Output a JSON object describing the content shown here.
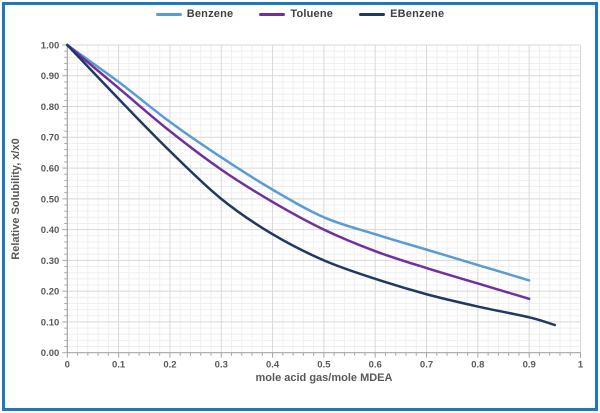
{
  "frame_color": "#1e78be",
  "chart_data": {
    "type": "line",
    "title": "",
    "xlabel": "mole acid gas/mole MDEA",
    "ylabel": "Relative Solubility, x/x0",
    "xlim": [
      0,
      1
    ],
    "ylim": [
      0,
      1
    ],
    "grid": "major-and-minor",
    "minor_step": 0.02,
    "major_step": 0.1,
    "legend_position": "top-center",
    "x_tick_labels": [
      "0",
      "0.1",
      "0.2",
      "0.3",
      "0.4",
      "0.5",
      "0.6",
      "0.7",
      "0.8",
      "0.9",
      "1"
    ],
    "y_tick_labels": [
      "0.00",
      "0.10",
      "0.20",
      "0.30",
      "0.40",
      "0.50",
      "0.60",
      "0.70",
      "0.80",
      "0.90",
      "1.00"
    ],
    "axis_color": "#a6a6a6",
    "major_grid_color": "#d8d8d8",
    "minor_grid_color": "#efefef",
    "tick_label_color": "#595959",
    "series": [
      {
        "name": "Benzene",
        "color": "#5b9bd5",
        "x": [
          0,
          0.1,
          0.2,
          0.3,
          0.4,
          0.5,
          0.6,
          0.7,
          0.8,
          0.9
        ],
        "y": [
          1.0,
          0.88,
          0.75,
          0.635,
          0.53,
          0.44,
          0.385,
          0.335,
          0.285,
          0.235
        ]
      },
      {
        "name": "Toluene",
        "color": "#7030a0",
        "x": [
          0,
          0.1,
          0.2,
          0.3,
          0.4,
          0.5,
          0.6,
          0.7,
          0.8,
          0.9
        ],
        "y": [
          1.0,
          0.86,
          0.72,
          0.595,
          0.49,
          0.4,
          0.33,
          0.275,
          0.225,
          0.175
        ]
      },
      {
        "name": "EBenzene",
        "color": "#203864",
        "x": [
          0,
          0.1,
          0.2,
          0.3,
          0.4,
          0.5,
          0.6,
          0.7,
          0.8,
          0.9,
          0.95
        ],
        "y": [
          1.0,
          0.825,
          0.655,
          0.5,
          0.385,
          0.3,
          0.24,
          0.19,
          0.15,
          0.115,
          0.09
        ]
      }
    ]
  }
}
